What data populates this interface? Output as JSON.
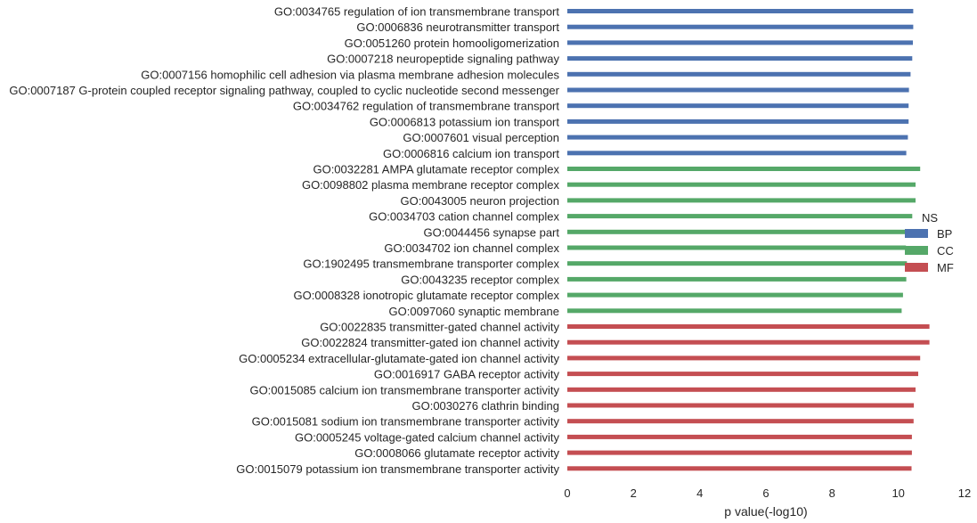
{
  "chart_data": {
    "type": "bar",
    "orientation": "horizontal",
    "title": "",
    "xlabel": "p value(-log10)",
    "ylabel": "",
    "xlim": [
      0,
      12
    ],
    "xticks": [
      "0",
      "2",
      "4",
      "6",
      "8",
      "10",
      "12"
    ],
    "grid": false,
    "legend": {
      "title": "NS",
      "placement": "center-right",
      "entries": [
        {
          "label": "BP",
          "color": "#4C72B0"
        },
        {
          "label": "CC",
          "color": "#55A868"
        },
        {
          "label": "MF",
          "color": "#C44E52"
        }
      ]
    },
    "categories": [
      "GO:0034765 regulation of ion transmembrane transport",
      "GO:0006836 neurotransmitter transport",
      "GO:0051260 protein homooligomerization",
      "GO:0007218 neuropeptide signaling pathway",
      "GO:0007156 homophilic cell adhesion via plasma membrane adhesion molecules",
      "GO:0007187 G-protein coupled receptor signaling pathway, coupled to cyclic nucleotide second messenger",
      "GO:0034762 regulation of transmembrane transport",
      "GO:0006813 potassium ion transport",
      "GO:0007601 visual perception",
      "GO:0006816 calcium ion transport",
      "GO:0032281 AMPA glutamate receptor complex",
      "GO:0098802 plasma membrane receptor complex",
      "GO:0043005 neuron projection",
      "GO:0034703 cation channel complex",
      "GO:0044456 synapse part",
      "GO:0034702 ion channel complex",
      "GO:1902495 transmembrane transporter complex",
      "GO:0043235 receptor complex",
      "GO:0008328 ionotropic glutamate receptor complex",
      "GO:0097060 synaptic membrane",
      "GO:0022835 transmitter-gated channel activity",
      "GO:0022824 transmitter-gated ion channel activity",
      "GO:0005234 extracellular-glutamate-gated ion channel activity",
      "GO:0016917 GABA receptor activity",
      "GO:0015085 calcium ion transmembrane transporter activity",
      "GO:0030276 clathrin binding",
      "GO:0015081 sodium ion transmembrane transporter activity",
      "GO:0005245 voltage-gated calcium channel activity",
      "GO:0008066 glutamate receptor activity",
      "GO:0015079 potassium ion transmembrane transporter activity"
    ],
    "groups": [
      "BP",
      "BP",
      "BP",
      "BP",
      "BP",
      "BP",
      "BP",
      "BP",
      "BP",
      "BP",
      "CC",
      "CC",
      "CC",
      "CC",
      "CC",
      "CC",
      "CC",
      "CC",
      "CC",
      "CC",
      "MF",
      "MF",
      "MF",
      "MF",
      "MF",
      "MF",
      "MF",
      "MF",
      "MF",
      "MF"
    ],
    "values": [
      10.45,
      10.45,
      10.44,
      10.42,
      10.37,
      10.32,
      10.31,
      10.31,
      10.29,
      10.24,
      10.66,
      10.52,
      10.52,
      10.42,
      10.28,
      10.23,
      10.26,
      10.24,
      10.14,
      10.1,
      10.94,
      10.94,
      10.66,
      10.6,
      10.52,
      10.47,
      10.46,
      10.41,
      10.41,
      10.4
    ]
  }
}
